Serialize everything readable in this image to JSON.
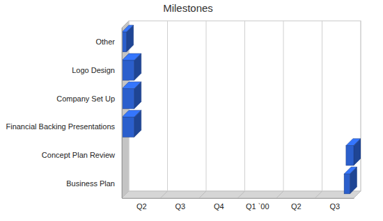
{
  "chart_data": {
    "type": "gantt",
    "title": "Milestones",
    "orientation": "horizontal",
    "categories": [
      "Other",
      "Logo Design",
      "Company Set Up",
      "Financial Backing Presentations",
      "Concept Plan Review",
      "Business Plan"
    ],
    "start": [
      0,
      0,
      0,
      0,
      5.8,
      5.75
    ],
    "end": [
      0.12,
      0.32,
      0.32,
      0.32,
      6.0,
      5.9
    ],
    "color": "#2b5fcc",
    "xlim": [
      0,
      6
    ],
    "xticks": [
      {
        "value": 0.5,
        "label": "Q2"
      },
      {
        "value": 1.5,
        "label": "Q3"
      },
      {
        "value": 2.5,
        "label": "Q4"
      },
      {
        "value": 3.5,
        "label": "Q1 `00"
      },
      {
        "value": 4.5,
        "label": "Q2"
      },
      {
        "value": 5.5,
        "label": "Q3"
      }
    ],
    "grid": true
  }
}
